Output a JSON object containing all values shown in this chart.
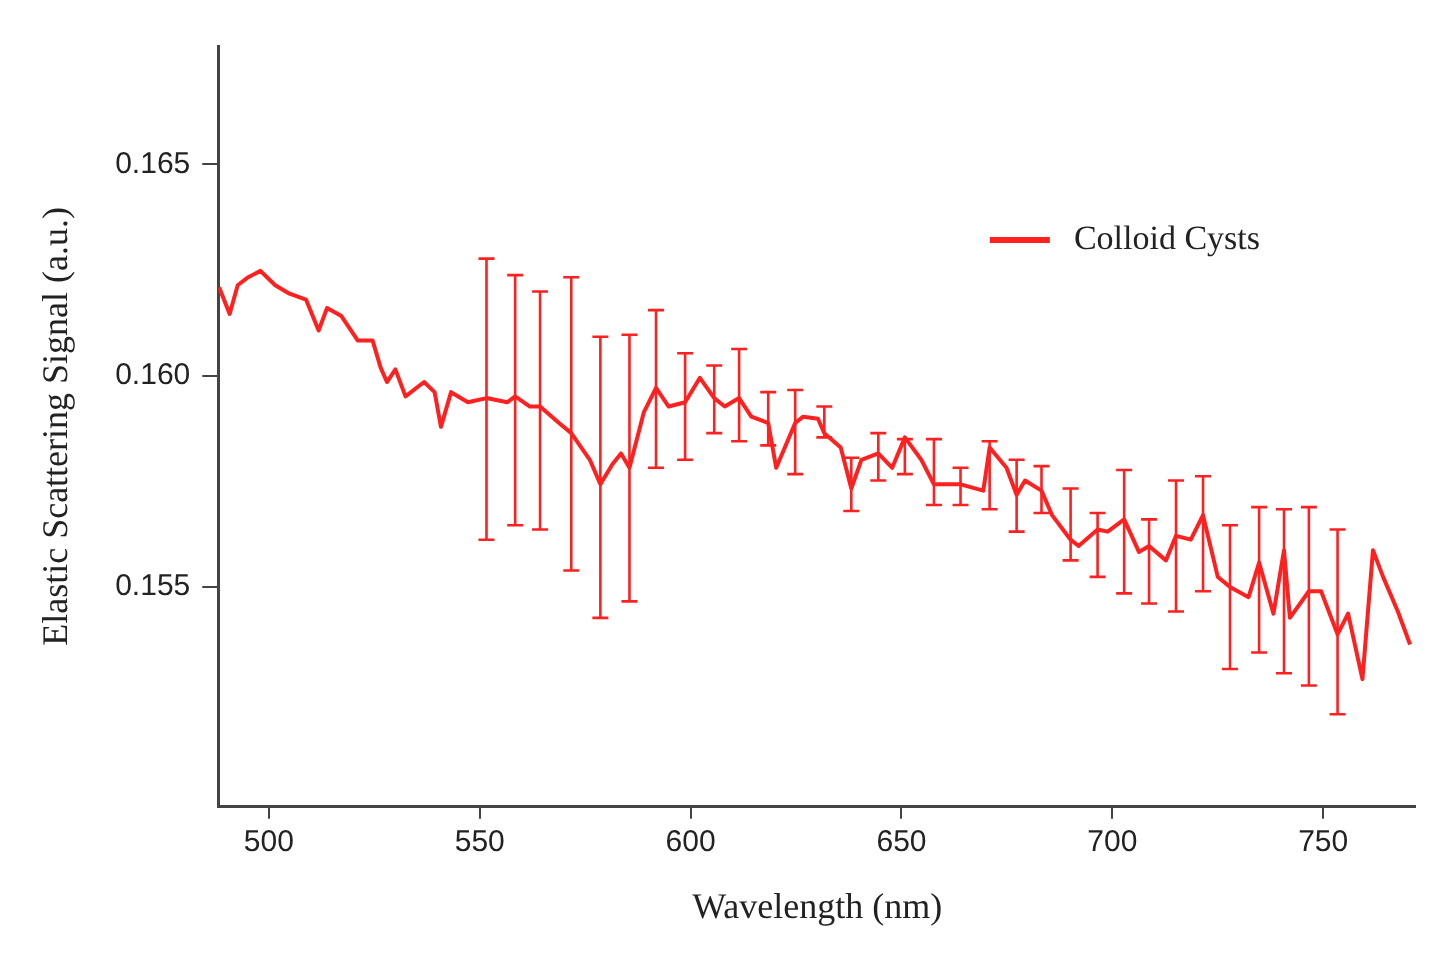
{
  "chart_data": {
    "type": "line",
    "xlabel": "Wavelength (nm)",
    "ylabel": "Elastic Scattering Signal (a.u.)",
    "xlim": [
      488,
      772
    ],
    "ylim": [
      0.1498,
      0.1678
    ],
    "xticks": [
      500,
      550,
      600,
      650,
      700,
      750
    ],
    "yticks": [
      {
        "value": 0.155,
        "label": "0.155"
      },
      {
        "value": 0.16,
        "label": "0.160"
      },
      {
        "value": 0.165,
        "label": "0.165"
      }
    ],
    "grid": false,
    "legend": "top right",
    "marker": "none",
    "line_style": "solid",
    "series": [
      {
        "name": "Colloid Cysts",
        "color": "#ff2020",
        "x": [
          488.2,
          490.7,
          492.6,
          495.1,
          498.0,
          501.5,
          504.9,
          508.8,
          511.8,
          513.8,
          517.2,
          521.1,
          524.6,
          526.5,
          528.0,
          530.0,
          532.4,
          536.8,
          539.3,
          540.8,
          543.2,
          547.2,
          551.6,
          556.5,
          558.4,
          561.9,
          564.3,
          568.8,
          571.7,
          576.1,
          578.6,
          581.5,
          583.5,
          585.5,
          588.9,
          591.8,
          594.8,
          598.7,
          602.2,
          605.6,
          608.1,
          611.5,
          614.4,
          618.4,
          620.3,
          624.8,
          626.7,
          630.2,
          631.7,
          635.6,
          638.1,
          640.5,
          644.5,
          647.8,
          650.8,
          654.7,
          657.7,
          664.0,
          669.4,
          670.9,
          674.9,
          677.3,
          679.3,
          683.2,
          685.7,
          690.1,
          692.0,
          696.5,
          698.9,
          702.8,
          706.3,
          708.7,
          712.7,
          715.1,
          718.6,
          721.5,
          725.0,
          727.9,
          732.3,
          734.8,
          738.2,
          740.7,
          742.1,
          746.6,
          749.5,
          753.4,
          755.9,
          759.3,
          761.8,
          764.2,
          767.7,
          770.6
        ],
        "values": [
          0.16209,
          0.16146,
          0.16214,
          0.16233,
          0.16248,
          0.16214,
          0.16194,
          0.1618,
          0.16107,
          0.1616,
          0.16141,
          0.16083,
          0.16083,
          0.16019,
          0.15985,
          0.16015,
          0.15951,
          0.15985,
          0.15961,
          0.15879,
          0.15961,
          0.15937,
          0.15947,
          0.15937,
          0.15951,
          0.15927,
          0.15927,
          0.15888,
          0.15864,
          0.15801,
          0.15743,
          0.15791,
          0.15816,
          0.15782,
          0.15913,
          0.15971,
          0.15927,
          0.15937,
          0.15995,
          0.15947,
          0.15927,
          0.15947,
          0.15903,
          0.15888,
          0.15782,
          0.15888,
          0.15903,
          0.15898,
          0.15864,
          0.1583,
          0.15733,
          0.15801,
          0.15816,
          0.15782,
          0.15854,
          0.15801,
          0.15743,
          0.15743,
          0.15728,
          0.1583,
          0.15782,
          0.15718,
          0.15752,
          0.15728,
          0.1567,
          0.15612,
          0.15597,
          0.15636,
          0.15631,
          0.1566,
          0.15583,
          0.15597,
          0.15563,
          0.15621,
          0.15612,
          0.1567,
          0.15524,
          0.155,
          0.15476,
          0.15558,
          0.15437,
          0.15587,
          0.15427,
          0.1549,
          0.1549,
          0.15388,
          0.15437,
          0.15282,
          0.15587,
          0.15524,
          0.15442,
          0.15364
        ],
        "errors": [
          null,
          null,
          null,
          null,
          null,
          null,
          null,
          null,
          null,
          null,
          null,
          null,
          null,
          null,
          null,
          null,
          null,
          null,
          null,
          null,
          null,
          null,
          [
            0.15612,
            0.16277
          ],
          null,
          [
            0.15646,
            0.16238
          ],
          null,
          [
            0.15636,
            0.16199
          ],
          null,
          [
            0.15539,
            0.16233
          ],
          null,
          [
            0.15427,
            0.16092
          ],
          null,
          null,
          [
            0.15466,
            0.16097
          ],
          null,
          [
            0.15782,
            0.16155
          ],
          null,
          [
            0.15801,
            0.16053
          ],
          null,
          [
            0.15864,
            0.16024
          ],
          null,
          [
            0.15845,
            0.16063
          ],
          null,
          [
            0.15835,
            0.15961
          ],
          null,
          [
            0.15767,
            0.15966
          ],
          null,
          null,
          [
            0.15854,
            0.15927
          ],
          null,
          [
            0.1568,
            0.15806
          ],
          null,
          [
            0.15752,
            0.15864
          ],
          null,
          [
            0.15767,
            0.1585
          ],
          null,
          [
            0.15694,
            0.1585
          ],
          [
            0.15694,
            0.15782
          ],
          null,
          [
            0.15684,
            0.15845
          ],
          null,
          [
            0.15631,
            0.15801
          ],
          null,
          [
            0.15675,
            0.15786
          ],
          null,
          [
            0.15563,
            0.15733
          ],
          null,
          [
            0.15524,
            0.15675
          ],
          null,
          [
            0.15485,
            0.15777
          ],
          null,
          [
            0.15461,
            0.1566
          ],
          null,
          [
            0.15442,
            0.15752
          ],
          null,
          [
            0.1549,
            0.15762
          ],
          null,
          [
            0.15306,
            0.15646
          ],
          null,
          [
            0.15345,
            0.15689
          ],
          null,
          [
            0.15296,
            0.15684
          ],
          null,
          [
            0.15267,
            0.15689
          ],
          null,
          [
            0.15199,
            0.15636
          ],
          null,
          null,
          null,
          null,
          null,
          null
        ]
      }
    ]
  }
}
